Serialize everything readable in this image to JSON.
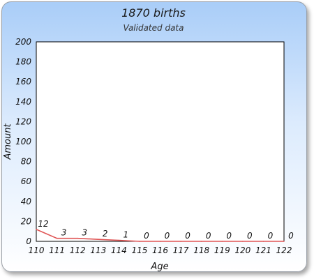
{
  "chart_data": {
    "type": "line",
    "title": "1870 births",
    "subtitle": "Validated data",
    "xlabel": "Age",
    "ylabel": "Amount",
    "x": [
      "110",
      "111",
      "112",
      "113",
      "114",
      "115",
      "116",
      "117",
      "118",
      "119",
      "120",
      "121",
      "122"
    ],
    "values": [
      12,
      3,
      3,
      2,
      1,
      0,
      0,
      0,
      0,
      0,
      0,
      0,
      0
    ],
    "ylim": [
      0,
      200
    ],
    "yticks": [
      0,
      20,
      40,
      60,
      80,
      100,
      120,
      140,
      160,
      180,
      200
    ],
    "line_color": "#e05555",
    "grid": false,
    "data_labels": true
  }
}
